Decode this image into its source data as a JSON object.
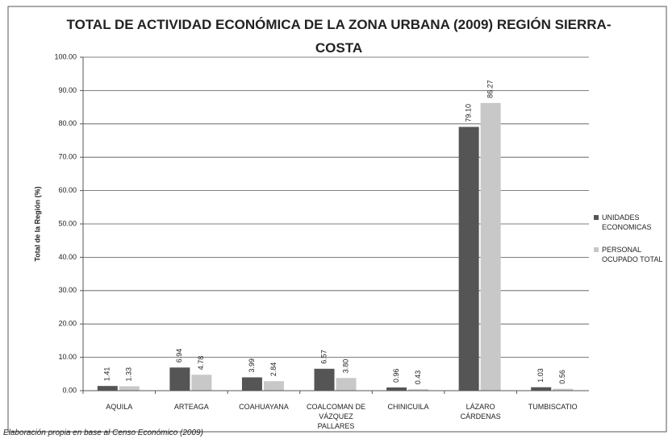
{
  "chart_data": {
    "type": "bar",
    "title": "TOTAL DE ACTIVIDAD ECONÓMICA DE LA ZONA URBANA (2009) REGIÓN SIERRA-COSTA",
    "y_label": "Total de la Región (%)",
    "note": "Elaboración propia en base al Censo Económico (2009)",
    "categories": [
      "AQUILA",
      "ARTEAGA",
      "COAHUAYANA",
      "COALCOMAN DE VÁZQUEZ PALLARES",
      "CHINICUILA",
      "LÁZARO CÁRDENAS",
      "TUMBISCATIO"
    ],
    "series": [
      {
        "name": "UNIDADES ECONOMICAS",
        "color": "#555555",
        "values": [
          1.41,
          6.94,
          3.99,
          6.57,
          0.96,
          79.1,
          1.03
        ],
        "value_labels": [
          "1.41",
          "6.94",
          "3.99",
          "6.57",
          "0.96",
          "79.10",
          "1.03"
        ]
      },
      {
        "name": "PERSONAL OCUPADO TOTAL",
        "color": "#c8c8c8",
        "values": [
          1.33,
          4.78,
          2.84,
          3.8,
          0.43,
          86.27,
          0.56
        ],
        "value_labels": [
          "1.33",
          "4.78",
          "2.84",
          "3.80",
          "0.43",
          "86.27",
          "0.56"
        ]
      }
    ],
    "ylim": [
      0,
      100
    ],
    "yticks": [
      {
        "value": 0,
        "label": "0.00"
      },
      {
        "value": 10,
        "label": "10.00"
      },
      {
        "value": 20,
        "label": "20.00"
      },
      {
        "value": 30,
        "label": "30.00"
      },
      {
        "value": 40,
        "label": "40.00"
      },
      {
        "value": 50,
        "label": "50.00"
      },
      {
        "value": 60,
        "label": "60.00"
      },
      {
        "value": 70,
        "label": "70.00"
      },
      {
        "value": 80,
        "label": "80.00"
      },
      {
        "value": 90,
        "label": "90.00"
      },
      {
        "value": 100,
        "label": "100.00"
      }
    ],
    "grid": true,
    "legend": "right"
  }
}
